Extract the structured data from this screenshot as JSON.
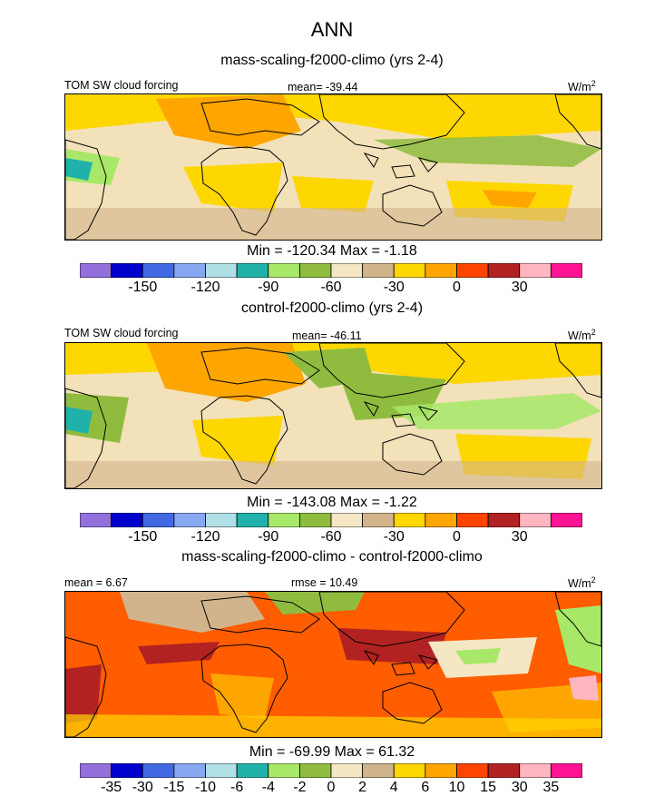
{
  "page_title": "ANN",
  "panels": [
    {
      "title": "mass-scaling-f2000-climo (yrs 2-4)",
      "left_label": "TOM SW cloud forcing",
      "center_label": "mean= -39.44",
      "units": "W/m",
      "units_sup": "2",
      "minmax": "Min = -120.34 Max =  -1.18"
    },
    {
      "title": "control-f2000-climo (yrs 2-4)",
      "left_label": "TOM SW cloud forcing",
      "center_label": "mean= -46.11",
      "units": "W/m",
      "units_sup": "2",
      "minmax": "Min = -143.08 Max =  -1.22"
    },
    {
      "title": "mass-scaling-f2000-climo - control-f2000-climo",
      "left_label": "mean =   6.67",
      "center_label": "rmse =  10.49",
      "units": "W/m",
      "units_sup": "2",
      "minmax": "Min = -69.99 Max =  61.32"
    }
  ],
  "chart_data": [
    {
      "type": "heatmap",
      "title": "mass-scaling-f2000-climo (yrs 2-4)",
      "variable": "TOM SW cloud forcing",
      "units": "W/m2",
      "mean": -39.44,
      "min": -120.34,
      "max": -1.18,
      "colorbar_ticks": [
        "-150",
        "-120",
        "-90",
        "-60",
        "-30",
        "0",
        "30"
      ],
      "colors": [
        "#9370db",
        "#0000cd",
        "#4169e1",
        "#87a8f0",
        "#b0e0e6",
        "#20b2aa",
        "#a8e868",
        "#8fbc3f",
        "#f5e6c4",
        "#d2b48c",
        "#ffd700",
        "#ffa500",
        "#ff4500",
        "#b22222",
        "#ffb6c1",
        "#ff1493"
      ]
    },
    {
      "type": "heatmap",
      "title": "control-f2000-climo (yrs 2-4)",
      "variable": "TOM SW cloud forcing",
      "units": "W/m2",
      "mean": -46.11,
      "min": -143.08,
      "max": -1.22,
      "colorbar_ticks": [
        "-150",
        "-120",
        "-90",
        "-60",
        "-30",
        "0",
        "30"
      ],
      "colors": [
        "#9370db",
        "#0000cd",
        "#4169e1",
        "#87a8f0",
        "#b0e0e6",
        "#20b2aa",
        "#a8e868",
        "#8fbc3f",
        "#f5e6c4",
        "#d2b48c",
        "#ffd700",
        "#ffa500",
        "#ff4500",
        "#b22222",
        "#ffb6c1",
        "#ff1493"
      ]
    },
    {
      "type": "heatmap",
      "title": "mass-scaling-f2000-climo - control-f2000-climo",
      "units": "W/m2",
      "mean": 6.67,
      "rmse": 10.49,
      "min": -69.99,
      "max": 61.32,
      "colorbar_ticks": [
        "-35",
        "-30",
        "-15",
        "-10",
        "-6",
        "-4",
        "-2",
        "0",
        "2",
        "4",
        "6",
        "10",
        "15",
        "30",
        "35"
      ],
      "colors": [
        "#9370db",
        "#0000cd",
        "#4169e1",
        "#87a8f0",
        "#b0e0e6",
        "#20b2aa",
        "#a8e868",
        "#8fbc3f",
        "#f5e6c4",
        "#d2b48c",
        "#ffd700",
        "#ffa500",
        "#ff4500",
        "#b22222",
        "#ffb6c1",
        "#ff1493"
      ]
    }
  ]
}
